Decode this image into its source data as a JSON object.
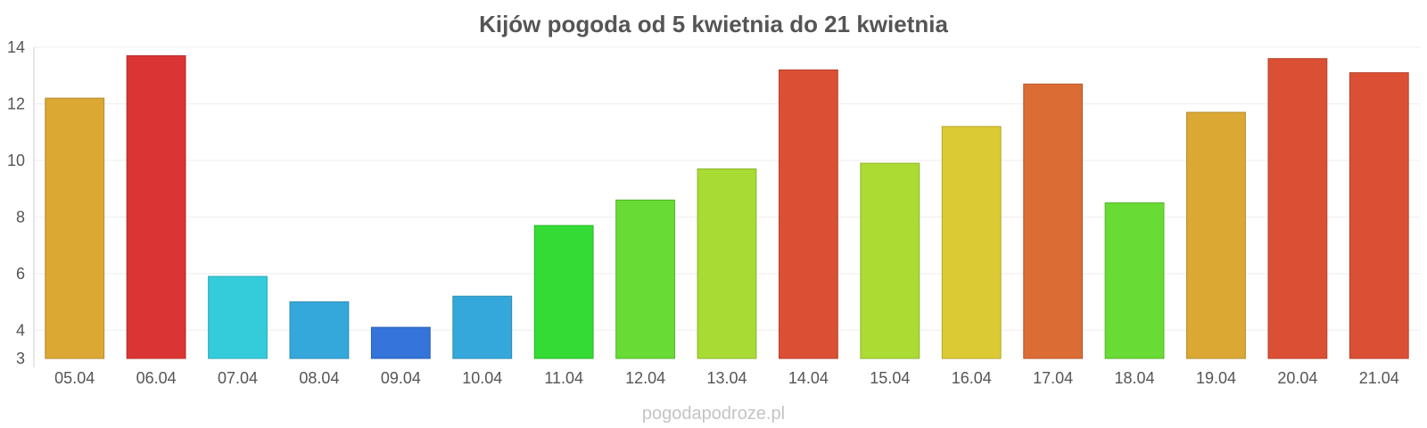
{
  "chart_data": {
    "type": "bar",
    "title": "Kijów pogoda od 5 kwietnia do 21 kwietnia",
    "xlabel": "",
    "ylabel": "",
    "categories": [
      "05.04",
      "06.04",
      "07.04",
      "08.04",
      "09.04",
      "10.04",
      "11.04",
      "12.04",
      "13.04",
      "14.04",
      "15.04",
      "16.04",
      "17.04",
      "18.04",
      "19.04",
      "20.04",
      "21.04"
    ],
    "values": [
      12.2,
      13.7,
      5.9,
      5.0,
      4.1,
      5.2,
      7.7,
      8.6,
      9.7,
      13.2,
      9.9,
      11.2,
      12.7,
      8.5,
      11.7,
      13.6,
      13.1
    ],
    "colors": [
      "#dba834",
      "#db3434",
      "#34ccdb",
      "#34a8db",
      "#3474db",
      "#34a8db",
      "#34db34",
      "#68db34",
      "#a8db34",
      "#db5034",
      "#acdb34",
      "#dbca34",
      "#db6c34",
      "#68db34",
      "#dba834",
      "#db5034",
      "#db5034"
    ],
    "ylim": [
      3,
      14
    ],
    "yticks": [
      3,
      4,
      6,
      8,
      10,
      12,
      14
    ],
    "grid": true,
    "legend": "none"
  },
  "watermark": "pogodapodroze.pl"
}
